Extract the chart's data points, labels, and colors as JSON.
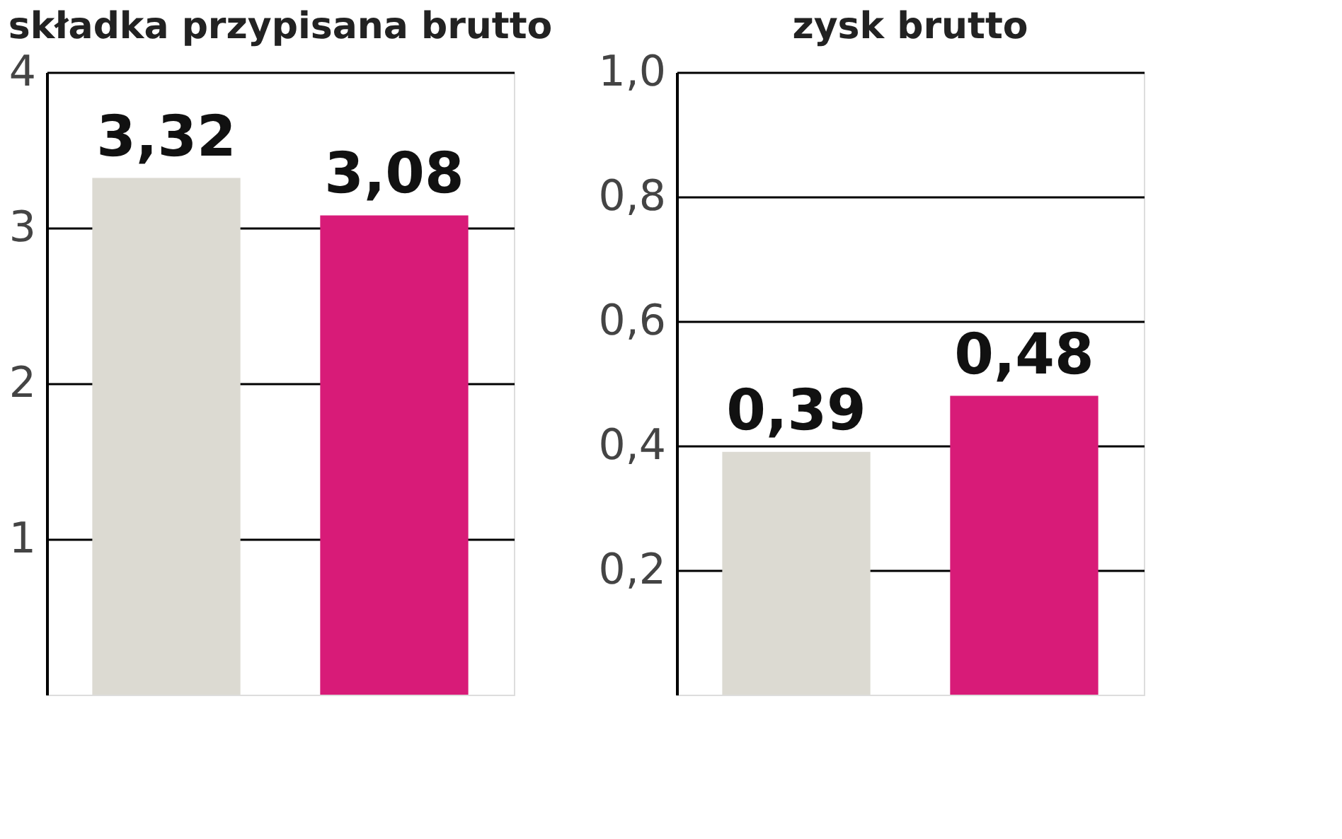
{
  "chart_data": [
    {
      "type": "bar",
      "title": "składka przypisana brutto",
      "categories": [
        null,
        null
      ],
      "series": [
        {
          "colors": [
            "#dcdad2",
            "#d81b78"
          ],
          "values": [
            3.32,
            3.08
          ],
          "value_labels": [
            "3,32",
            "3,08"
          ]
        }
      ],
      "ylim": [
        0,
        4
      ],
      "yticks": [
        1,
        2,
        3,
        4
      ],
      "grid": "y",
      "legend": false
    },
    {
      "type": "bar",
      "title": "zysk brutto",
      "categories": [
        null,
        null
      ],
      "series": [
        {
          "colors": [
            "#dcdad2",
            "#d81b78"
          ],
          "values": [
            0.39,
            0.48
          ],
          "value_labels": [
            "0,39",
            "0,48"
          ]
        }
      ],
      "ylim": [
        0,
        1
      ],
      "yticks": [
        {
          "value": 0.2,
          "label": "0,2"
        },
        {
          "value": 0.4,
          "label": "0,4"
        },
        {
          "value": 0.6,
          "label": "0,6"
        },
        {
          "value": 0.8,
          "label": "0,8"
        },
        {
          "value": 1,
          "label": "1,0"
        }
      ],
      "grid": "y",
      "legend": false
    }
  ]
}
